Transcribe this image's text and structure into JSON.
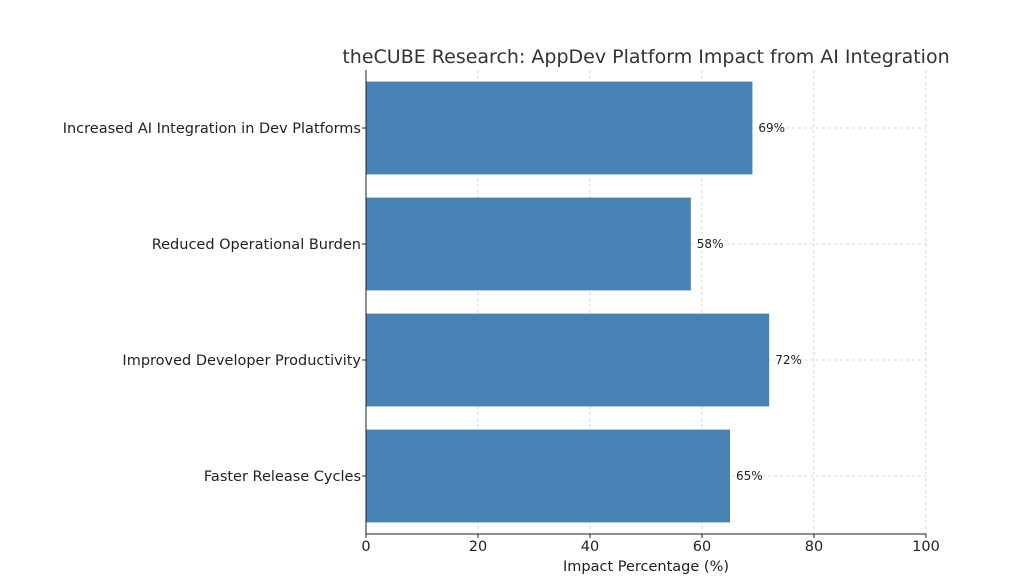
{
  "chart_data": {
    "type": "bar",
    "orientation": "horizontal",
    "title": "theCUBE Research: AppDev Platform Impact from AI Integration",
    "xlabel": "Impact Percentage (%)",
    "ylabel": "",
    "categories": [
      "Increased AI Integration in Dev Platforms",
      "Reduced Operational Burden",
      "Improved Developer Productivity",
      "Faster Release Cycles"
    ],
    "values": [
      69,
      58,
      72,
      65
    ],
    "value_labels": [
      "69%",
      "58%",
      "72%",
      "65%"
    ],
    "xlim": [
      0,
      100
    ],
    "xticks": [
      0,
      20,
      40,
      60,
      80,
      100
    ],
    "grid": true,
    "bar_color": "#4682b4",
    "grid_color": "#cccccc"
  }
}
